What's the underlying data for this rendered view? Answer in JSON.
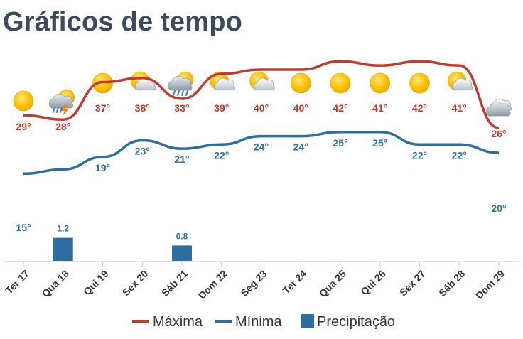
{
  "title": "Gráficos de tempo",
  "colors": {
    "max": "#c23b30",
    "min": "#2c6e9f",
    "precip": "#2c6e9f",
    "title": "#3d4a5c"
  },
  "chart_data": {
    "type": "line",
    "categories": [
      "Ter 17",
      "Qua 18",
      "Qui 19",
      "Sex 20",
      "Sáb 21",
      "Dom 22",
      "Seg 23",
      "Ter 24",
      "Qua 25",
      "Qui 26",
      "Sex 27",
      "Sáb 28",
      "Dom 29"
    ],
    "icons": [
      "sun-icon",
      "storm-cloud-icon",
      "sun-icon",
      "partly-cloudy-icon",
      "rain-cloud-icon",
      "partly-cloudy-icon",
      "partly-cloudy-icon",
      "sun-icon",
      "sun-icon",
      "sun-icon",
      "sun-icon",
      "partly-cloudy-icon",
      "cloud-icon"
    ],
    "series": [
      {
        "name": "Máxima",
        "values": [
          29,
          28,
          37,
          38,
          33,
          39,
          40,
          40,
          42,
          41,
          42,
          41,
          26
        ],
        "labels": [
          "29°",
          "28°",
          "37°",
          "38°",
          "33°",
          "39°",
          "40°",
          "40°",
          "42°",
          "41°",
          "42°",
          "41°",
          "26°"
        ]
      },
      {
        "name": "Mínima",
        "values": [
          15,
          16,
          19,
          23,
          21,
          22,
          24,
          24,
          25,
          25,
          22,
          22,
          20
        ],
        "labels": [
          "15°",
          "",
          "19°",
          "23°",
          "21°",
          "22°",
          "24°",
          "24°",
          "25°",
          "25°",
          "22°",
          "22°",
          "20°"
        ]
      },
      {
        "name": "Precipitação",
        "values": [
          0,
          1.2,
          0,
          0,
          0.8,
          0,
          0,
          0,
          0,
          0,
          0,
          0,
          0
        ],
        "labels": [
          "",
          "1.2",
          "",
          "",
          "0.8",
          "",
          "",
          "",
          "",
          "",
          "",
          "",
          ""
        ]
      }
    ],
    "legend": [
      "Máxima",
      "Mínima",
      "Precipitação"
    ],
    "legend_position": "bottom"
  }
}
